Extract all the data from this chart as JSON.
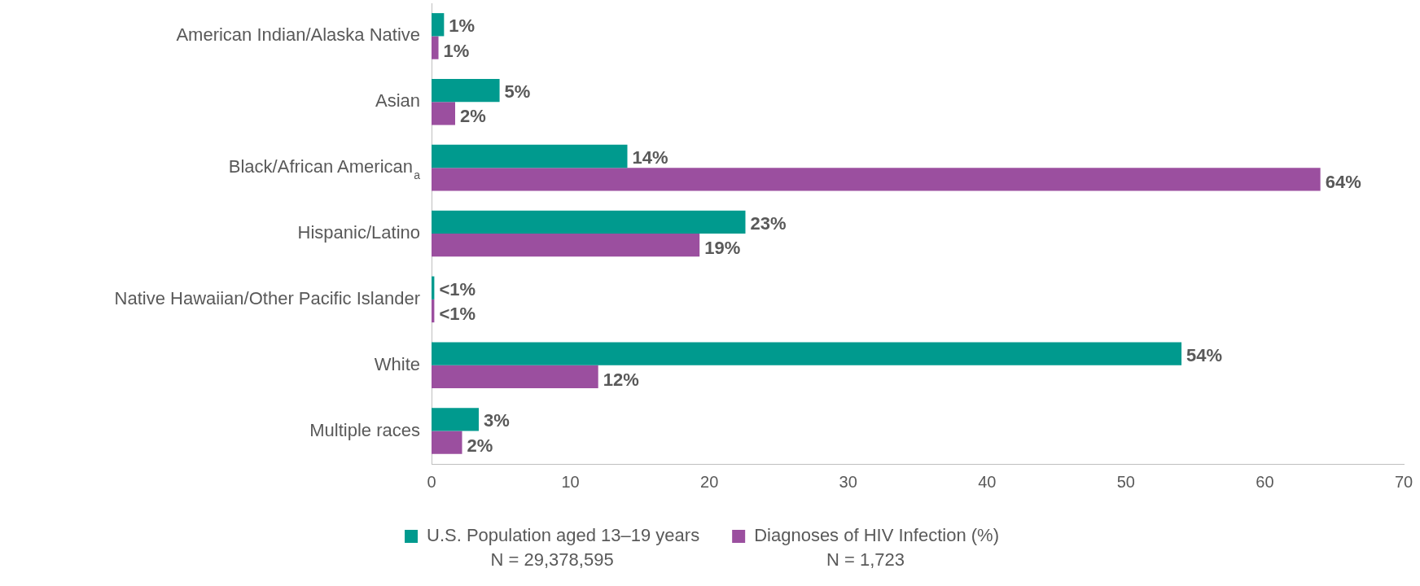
{
  "chart_data": {
    "type": "bar",
    "orientation": "horizontal",
    "categories": [
      "American Indian/Alaska Native",
      "Asian",
      "Black/African American$_{a}$",
      "Hispanic/Latino",
      "Native Hawaiian/Other Pacific Islander",
      "White",
      "Multiple races"
    ],
    "series": [
      {
        "name": "U.S. Population aged 13–19 years",
        "color": "#009a8e",
        "values": [
          0.9,
          4.9,
          14.1,
          22.6,
          0.2,
          54,
          3.4
        ],
        "value_labels": [
          "1%",
          "5%",
          "14%",
          "23%",
          "<1%",
          "54%",
          "3%"
        ]
      },
      {
        "name": "Diagnoses of HIV Infection (%)",
        "color": "#9b4f9f",
        "values": [
          0.5,
          1.7,
          64,
          19.3,
          0.2,
          12,
          2.2
        ],
        "value_labels": [
          "1%",
          "2%",
          "64%",
          "19%",
          "<1%",
          "12%",
          "2%"
        ]
      }
    ],
    "xlim": [
      0,
      70
    ],
    "xticks": [
      0,
      10,
      20,
      30,
      40,
      50,
      60,
      70
    ],
    "grid": false,
    "legend": "bottom",
    "annotations": [
      "N = 29,378,595",
      "N = 1,723"
    ]
  }
}
